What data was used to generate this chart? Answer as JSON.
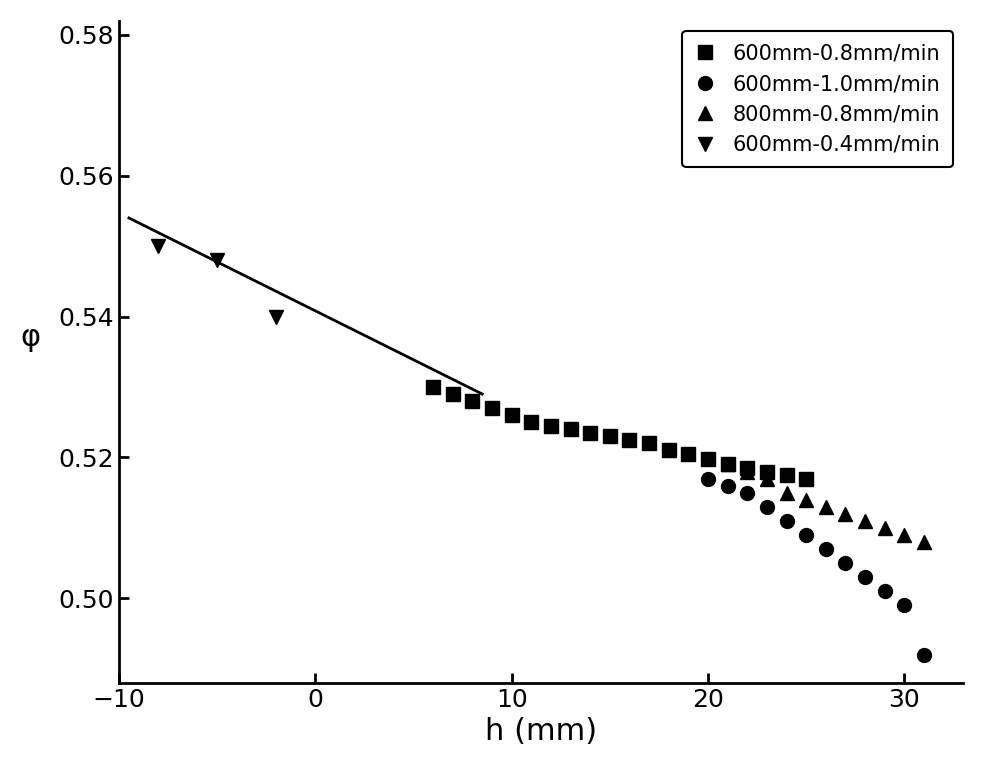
{
  "xlabel": "h (mm)",
  "ylabel": "φ",
  "xlim": [
    -10,
    33
  ],
  "ylim": [
    0.488,
    0.582
  ],
  "xticks": [
    -10,
    0,
    10,
    20,
    30
  ],
  "yticks": [
    0.5,
    0.52,
    0.54,
    0.56,
    0.58
  ],
  "background_color": "#ffffff",
  "series": {
    "squares": {
      "label": "600mm-0.8mm/min",
      "marker": "s",
      "color": "black",
      "x": [
        6,
        7,
        8,
        9,
        10,
        11,
        12,
        13,
        14,
        15,
        16,
        17,
        18,
        19,
        20,
        21,
        22,
        23,
        24,
        25
      ],
      "y": [
        0.53,
        0.529,
        0.528,
        0.527,
        0.526,
        0.525,
        0.5245,
        0.524,
        0.5235,
        0.523,
        0.5225,
        0.522,
        0.521,
        0.5205,
        0.5198,
        0.519,
        0.5185,
        0.518,
        0.5175,
        0.517
      ]
    },
    "circles": {
      "label": "600mm-1.0mm/min",
      "marker": "o",
      "color": "black",
      "x": [
        20,
        21,
        22,
        23,
        24,
        25,
        26,
        27,
        28,
        29,
        30,
        31
      ],
      "y": [
        0.517,
        0.516,
        0.515,
        0.513,
        0.511,
        0.509,
        0.507,
        0.505,
        0.503,
        0.501,
        0.499,
        0.492
      ]
    },
    "triangles_up": {
      "label": "800mm-0.8mm/min",
      "marker": "^",
      "color": "black",
      "x": [
        21,
        22,
        23,
        24,
        25,
        26,
        27,
        28,
        29,
        30,
        31
      ],
      "y": [
        0.519,
        0.518,
        0.517,
        0.515,
        0.514,
        0.513,
        0.512,
        0.511,
        0.51,
        0.509,
        0.508
      ]
    },
    "triangles_down": {
      "label": "600mm-0.4mm/min",
      "marker": "v",
      "color": "black",
      "x": [
        -8,
        -5,
        -2
      ],
      "y": [
        0.55,
        0.548,
        0.54
      ]
    }
  },
  "fit_line": {
    "x": [
      -9.5,
      8.5
    ],
    "y": [
      0.554,
      0.529
    ]
  },
  "legend_loc": "upper right",
  "markersize": 10,
  "linewidth": 2.0,
  "xlabel_fontsize": 22,
  "ylabel_fontsize": 22,
  "tick_fontsize": 18,
  "legend_fontsize": 15
}
